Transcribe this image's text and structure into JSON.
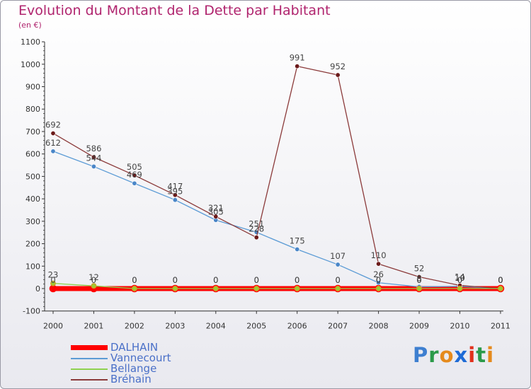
{
  "title": "Evolution du Montant de la Dette par Habitant",
  "subtitle": "(en €)",
  "logo": {
    "text": "Proxiti",
    "letter_colors": [
      "#3e7fd0",
      "#2b9a4a",
      "#e58a1c",
      "#1e6bd6",
      "#e2301c",
      "#2b9a4a",
      "#e58a1c"
    ]
  },
  "chart_data": {
    "type": "line",
    "x": [
      "2000",
      "2001",
      "2002",
      "2003",
      "2004",
      "2005",
      "2006",
      "2007",
      "2008",
      "2009",
      "2010",
      "2011"
    ],
    "ylim": [
      -100,
      1100
    ],
    "yticks": [
      -100,
      0,
      100,
      200,
      300,
      400,
      500,
      600,
      700,
      800,
      900,
      1000,
      1100
    ],
    "grid": false,
    "legend_position": "bottom-left",
    "series": [
      {
        "name": "DALHAIN",
        "color": "#ff0000",
        "width": 7,
        "marker": 5,
        "values": [
          0,
          0,
          0,
          0,
          0,
          0,
          0,
          0,
          0,
          0,
          0,
          0
        ],
        "labels": [
          "0",
          "0",
          "0",
          "0",
          "0",
          "0",
          "0",
          "0",
          "0",
          "0",
          "0",
          "0"
        ]
      },
      {
        "name": "Vannecourt",
        "color": "#5b9bd5",
        "width": 1.3,
        "marker": 3.2,
        "values": [
          612,
          544,
          469,
          395,
          305,
          251,
          175,
          107,
          26,
          8,
          10,
          0
        ],
        "labels": [
          "612",
          "544",
          "469",
          "395",
          "305",
          "251",
          "175",
          "107",
          "26",
          "8",
          "10",
          "0"
        ]
      },
      {
        "name": "Bellange",
        "color": "#8fd14f",
        "width": 1.3,
        "marker": 3.2,
        "values": [
          23,
          12,
          0,
          0,
          0,
          0,
          0,
          0,
          0,
          0,
          0,
          0
        ],
        "labels": [
          "23",
          "12",
          "0",
          "0",
          "0",
          "0",
          "0",
          "0",
          "0",
          "0",
          "0",
          "0"
        ]
      },
      {
        "name": "Bréhain",
        "color": "#8b3a3a",
        "width": 1.3,
        "marker": 3.2,
        "values": [
          692,
          586,
          505,
          417,
          321,
          228,
          991,
          952,
          110,
          52,
          14,
          0
        ],
        "labels": [
          "692",
          "586",
          "505",
          "417",
          "321",
          "228",
          "991",
          "952",
          "110",
          "52",
          "14",
          "0"
        ]
      }
    ]
  }
}
